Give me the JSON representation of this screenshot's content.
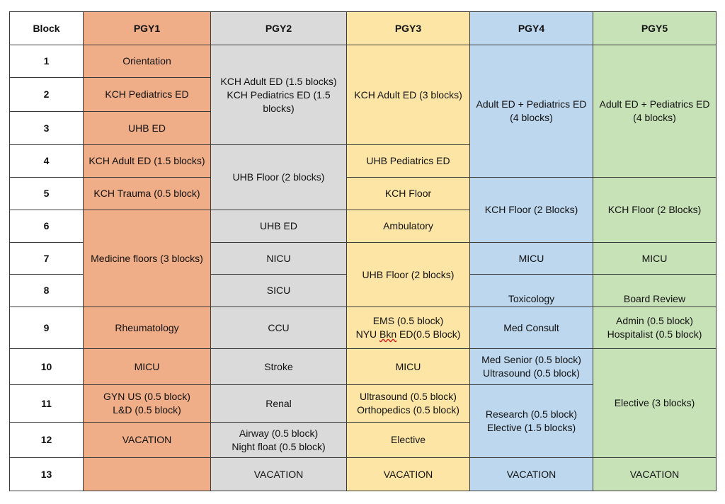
{
  "headers": {
    "block": "Block",
    "pgy1": "PGY1",
    "pgy2": "PGY2",
    "pgy3": "PGY3",
    "pgy4": "PGY4",
    "pgy5": "PGY5"
  },
  "block_numbers": [
    "1",
    "2",
    "3",
    "4",
    "5",
    "6",
    "7",
    "8",
    "9",
    "10",
    "11",
    "12",
    "13"
  ],
  "pgy1": {
    "b1": "Orientation",
    "b2": "KCH Pediatrics ED",
    "b3": "UHB ED",
    "b4": "KCH Adult ED (1.5 blocks)",
    "b5": "KCH Trauma (0.5 block)",
    "b6_8": "Medicine floors (3 blocks)",
    "b9": "Rheumatology",
    "b10": "MICU",
    "b11_line1": "GYN US (0.5 block)",
    "b11_line2": "L&D (0.5 block)",
    "b12": "VACATION",
    "b13": ""
  },
  "pgy2": {
    "b1_3_line1": "KCH Adult ED (1.5 blocks)",
    "b1_3_line2": "KCH Pediatrics ED (1.5 blocks)",
    "b4_5": "UHB Floor (2 blocks)",
    "b6": "UHB ED",
    "b7": "NICU",
    "b8": "SICU",
    "b9": "CCU",
    "b10": "Stroke",
    "b11": "Renal",
    "b12_line1": "Airway (0.5 block)",
    "b12_line2": "Night float (0.5 block)",
    "b13": "VACATION"
  },
  "pgy3": {
    "b1_3": "KCH Adult ED (3 blocks)",
    "b4": "UHB Pediatrics ED",
    "b5": "KCH Floor",
    "b6": "Ambulatory",
    "b7_8": "UHB Floor (2 blocks)",
    "b9_line1": "EMS (0.5 block)",
    "b9_line2_prefix": "NYU ",
    "b9_line2_marked": "Bkn",
    "b9_line2_suffix": " ED(0.5 Block)",
    "b10": "MICU",
    "b11_line1": "Ultrasound (0.5 block)",
    "b11_line2": "Orthopedics (0.5 block)",
    "b12": "Elective",
    "b13": "VACATION"
  },
  "pgy4": {
    "b1_4_line1": "Adult ED + Pediatrics ED",
    "b1_4_line2": "(4 blocks)",
    "b5_6": "KCH Floor (2 Blocks)",
    "b7": "MICU",
    "b8": "Toxicology",
    "b9": "Med Consult",
    "b10_line1": "Med Senior (0.5 block)",
    "b10_line2": "Ultrasound (0.5 block)",
    "b11_12_line1": "Research (0.5 block)",
    "b11_12_line2": "Elective (1.5 blocks)",
    "b13": "VACATION"
  },
  "pgy5": {
    "b1_4_line1": "Adult ED + Pediatrics ED",
    "b1_4_line2": "(4 blocks)",
    "b5_6": "KCH Floor (2 Blocks)",
    "b7": "MICU",
    "b8": "Board Review",
    "b9_line1": "Admin (0.5 block)",
    "b9_line2": "Hospitalist (0.5 block)",
    "b10_12": "Elective (3 blocks)",
    "b13": "VACATION"
  },
  "colors": {
    "pgy1": "#efae87",
    "pgy2": "#dadada",
    "pgy3": "#fde6a5",
    "pgy4": "#bdd7ee",
    "pgy5": "#c8e2b8"
  }
}
